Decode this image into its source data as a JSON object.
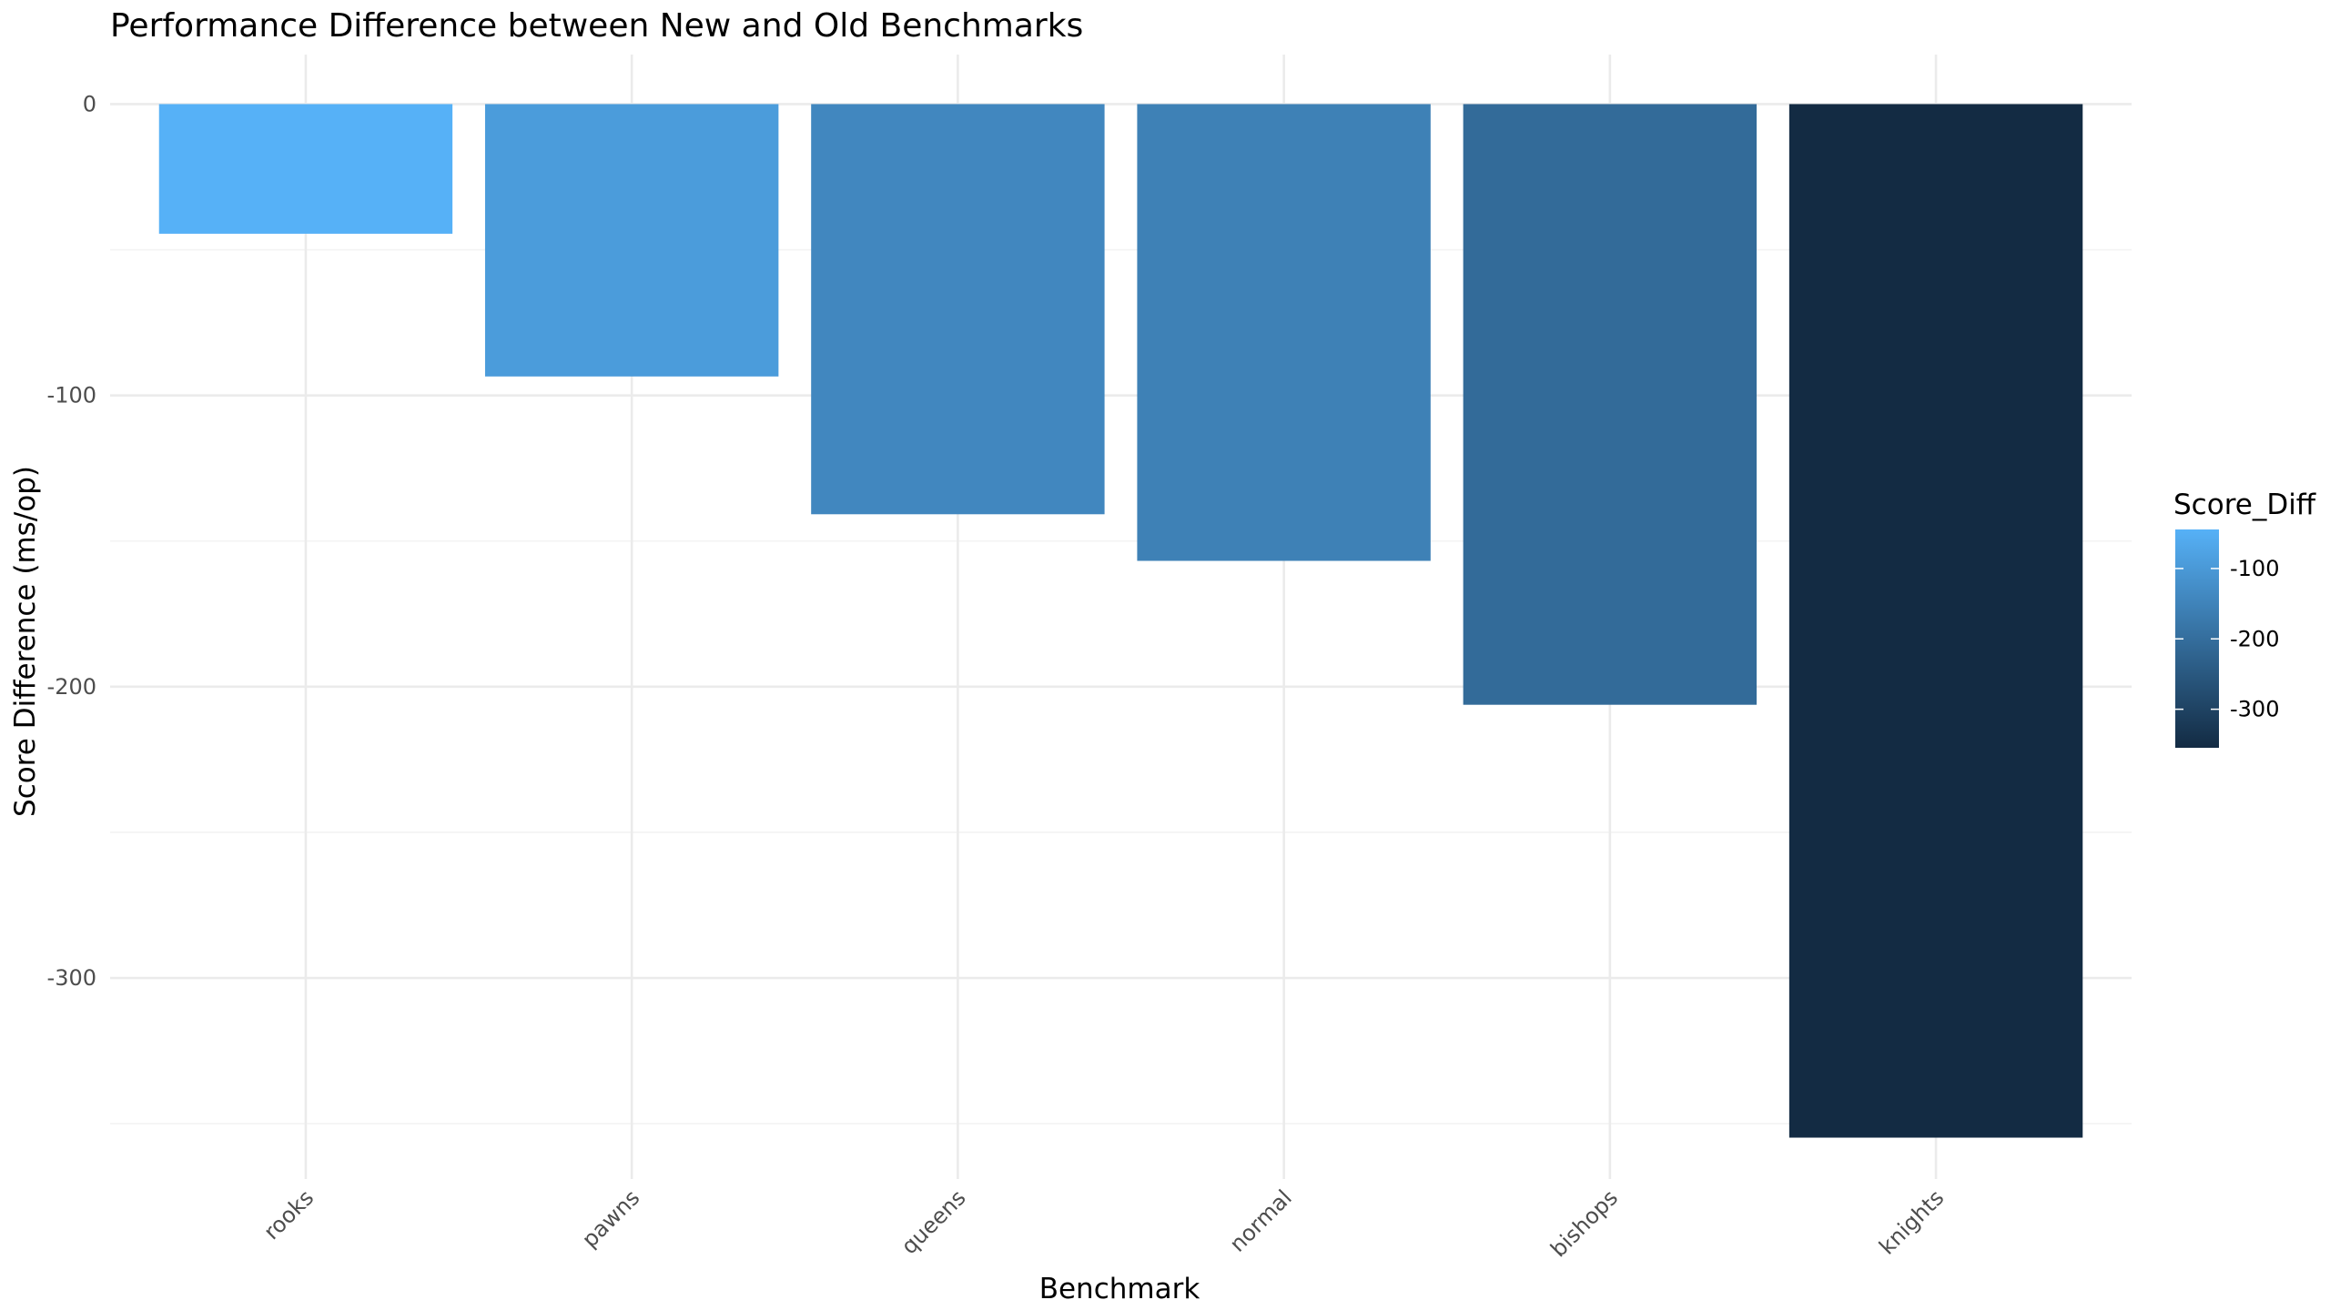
{
  "chart_data": {
    "type": "bar",
    "title": "Performance Difference between New and Old Benchmarks",
    "xlabel": "Benchmark",
    "ylabel": "Score Difference (ms/op)",
    "categories": [
      "rooks",
      "pawns",
      "queens",
      "normal",
      "bishops",
      "knights"
    ],
    "values": [
      -44.5,
      -93.5,
      -140.8,
      -156.8,
      -206.2,
      -354.8
    ],
    "ylim": [
      -369,
      17
    ],
    "y_ticks": [
      0,
      -100,
      -200,
      -300
    ],
    "y_tick_labels": [
      "0",
      "-100",
      "-200",
      "-300"
    ],
    "x_tick_rotation_deg": 45,
    "grid": true,
    "legend": {
      "title": "Score_Diff",
      "position": "right",
      "type": "colorbar",
      "range": [
        -354.8,
        -44.5
      ],
      "breaks": [
        -100,
        -200,
        -300
      ],
      "break_labels": [
        "-100",
        "-200",
        "-300"
      ],
      "color_high": "#56b1f7",
      "color_low": "#132b43"
    }
  }
}
